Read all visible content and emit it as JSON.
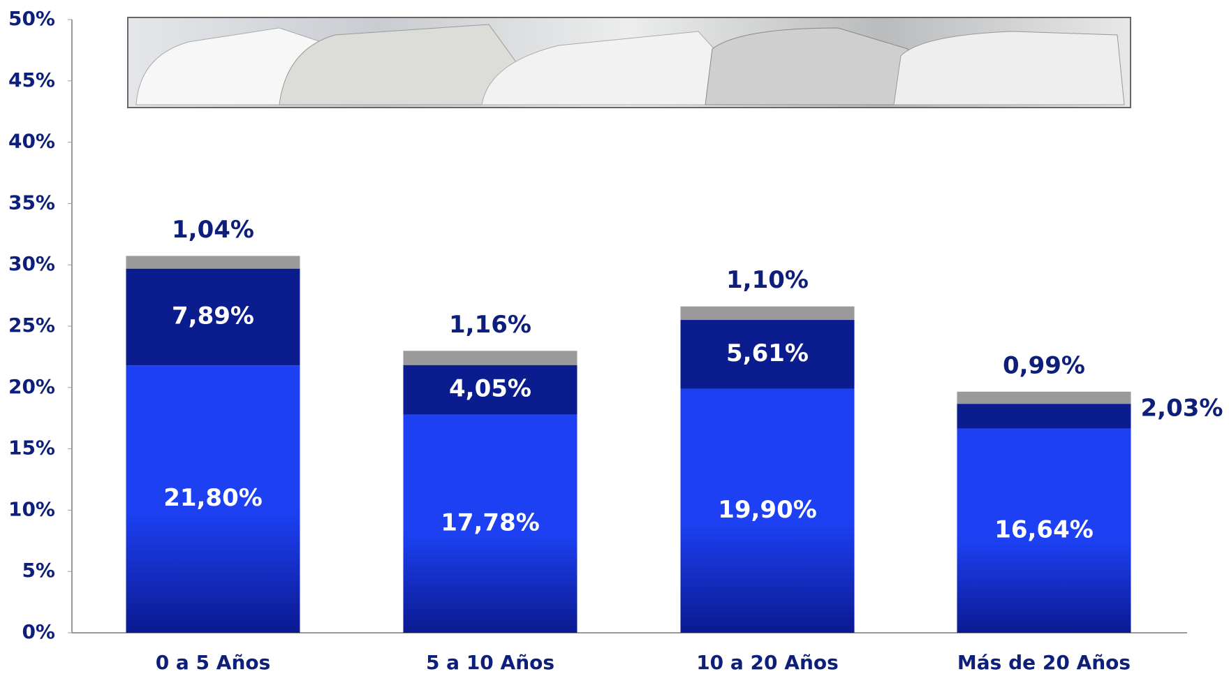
{
  "chart_data": {
    "type": "stacked-bar",
    "categories": [
      "0 a 5 Años",
      "5 a 10 Años",
      "10 a 20 Años",
      "Más de 20 Años"
    ],
    "series": [
      {
        "color": "#1c40f2",
        "values": [
          21.8,
          17.78,
          19.9,
          16.64
        ],
        "value_labels": [
          "21,80%",
          "17,78%",
          "19,90%",
          "16,64%"
        ],
        "label_color": "#ffffff"
      },
      {
        "color": "#0b1c8e",
        "values": [
          7.89,
          4.05,
          5.61,
          2.03
        ],
        "value_labels": [
          "7,89%",
          "4,05%",
          "5,61%",
          "2,03%"
        ],
        "label_color": "#ffffff"
      },
      {
        "color": "#9a9a9a",
        "values": [
          1.04,
          1.16,
          1.1,
          0.99
        ],
        "value_labels": [
          "1,04%",
          "1,16%",
          "1,10%",
          "0,99%"
        ],
        "label_color": "#0d1f7a"
      }
    ],
    "ylim": [
      0,
      50
    ],
    "yticks": [
      {
        "value": 0,
        "label": "0%"
      },
      {
        "value": 5,
        "label": "5%"
      },
      {
        "value": 10,
        "label": "10%"
      },
      {
        "value": 15,
        "label": "15%"
      },
      {
        "value": 20,
        "label": "20%"
      },
      {
        "value": 25,
        "label": "25%"
      },
      {
        "value": 30,
        "label": "30%"
      },
      {
        "value": 35,
        "label": "35%"
      },
      {
        "value": 40,
        "label": "40%"
      },
      {
        "value": 45,
        "label": "45%"
      },
      {
        "value": 50,
        "label": "50%"
      }
    ]
  }
}
